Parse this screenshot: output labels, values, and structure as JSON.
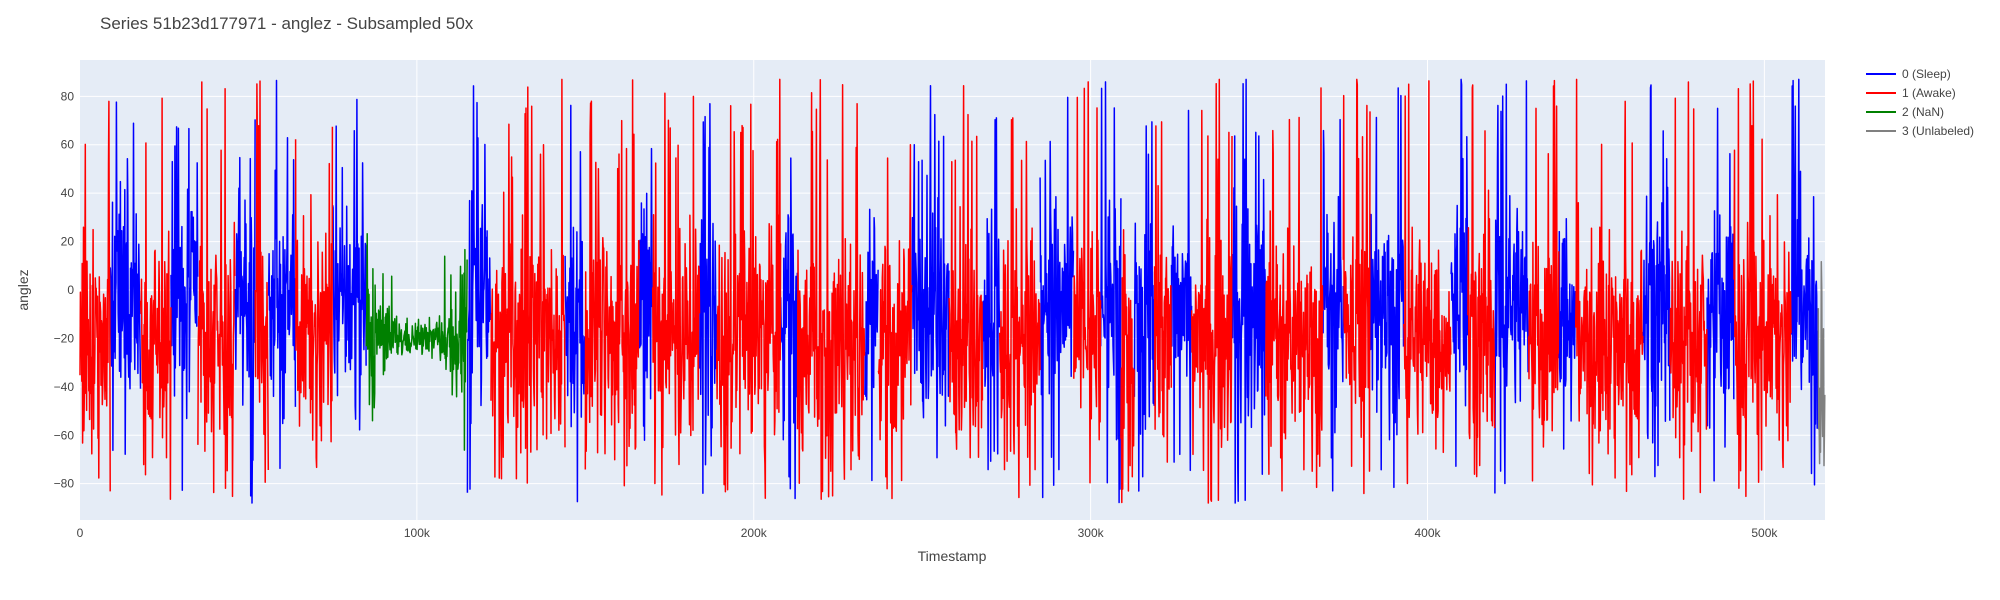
{
  "chart_data": {
    "type": "line",
    "title": "Series 51b23d177971 - anglez - Subsampled 50x",
    "xlabel": "Timestamp",
    "ylabel": "anglez",
    "xlim": [
      0,
      518000
    ],
    "ylim": [
      -95,
      95
    ],
    "x_ticks": [
      0,
      100000,
      200000,
      300000,
      400000,
      500000
    ],
    "x_tick_labels": [
      "0",
      "100k",
      "200k",
      "300k",
      "400k",
      "500k"
    ],
    "y_ticks": [
      -80,
      -60,
      -40,
      -20,
      0,
      20,
      40,
      60,
      80
    ],
    "y_tick_labels": [
      "−80",
      "−60",
      "−40",
      "−20",
      "0",
      "20",
      "40",
      "60",
      "80"
    ],
    "grid": true,
    "legend_position": "top-right",
    "series": [
      {
        "name": "0 (Sleep)",
        "color": "#0000ff",
        "segments": [
          [
            9000,
            18000
          ],
          [
            27000,
            35000
          ],
          [
            46000,
            52000
          ],
          [
            56000,
            64000
          ],
          [
            75000,
            80000
          ],
          [
            80000,
            85000
          ],
          [
            115000,
            122000
          ],
          [
            144000,
            150000
          ],
          [
            166000,
            170000
          ],
          [
            184000,
            189000
          ],
          [
            208000,
            213000
          ],
          [
            233000,
            237000
          ],
          [
            247000,
            258000
          ],
          [
            268000,
            273000
          ],
          [
            285000,
            295000
          ],
          [
            303000,
            309000
          ],
          [
            313000,
            319000
          ],
          [
            324000,
            330000
          ],
          [
            342000,
            352000
          ],
          [
            369000,
            375000
          ],
          [
            383000,
            393000
          ],
          [
            407000,
            412000
          ],
          [
            420000,
            430000
          ],
          [
            439000,
            444000
          ],
          [
            464000,
            472000
          ],
          [
            483000,
            491000
          ],
          [
            508000,
            516000
          ]
        ]
      },
      {
        "name": "1 (Awake)",
        "color": "#ff0000",
        "segments": [
          [
            0,
            9000
          ],
          [
            18000,
            27000
          ],
          [
            35000,
            46000
          ],
          [
            52000,
            56000
          ],
          [
            64000,
            75000
          ],
          [
            122000,
            144000
          ],
          [
            150000,
            166000
          ],
          [
            170000,
            184000
          ],
          [
            189000,
            208000
          ],
          [
            213000,
            233000
          ],
          [
            237000,
            247000
          ],
          [
            258000,
            268000
          ],
          [
            273000,
            285000
          ],
          [
            295000,
            303000
          ],
          [
            309000,
            313000
          ],
          [
            319000,
            324000
          ],
          [
            330000,
            342000
          ],
          [
            352000,
            369000
          ],
          [
            375000,
            383000
          ],
          [
            393000,
            407000
          ],
          [
            412000,
            420000
          ],
          [
            430000,
            439000
          ],
          [
            444000,
            464000
          ],
          [
            472000,
            483000
          ],
          [
            491000,
            508000
          ]
        ]
      },
      {
        "name": "2 (NaN)",
        "color": "#008000",
        "segments": [
          [
            85000,
            115000
          ]
        ]
      },
      {
        "name": "3 (Unlabeled)",
        "color": "#808080",
        "segments": [
          [
            516000,
            518000
          ]
        ]
      }
    ]
  }
}
